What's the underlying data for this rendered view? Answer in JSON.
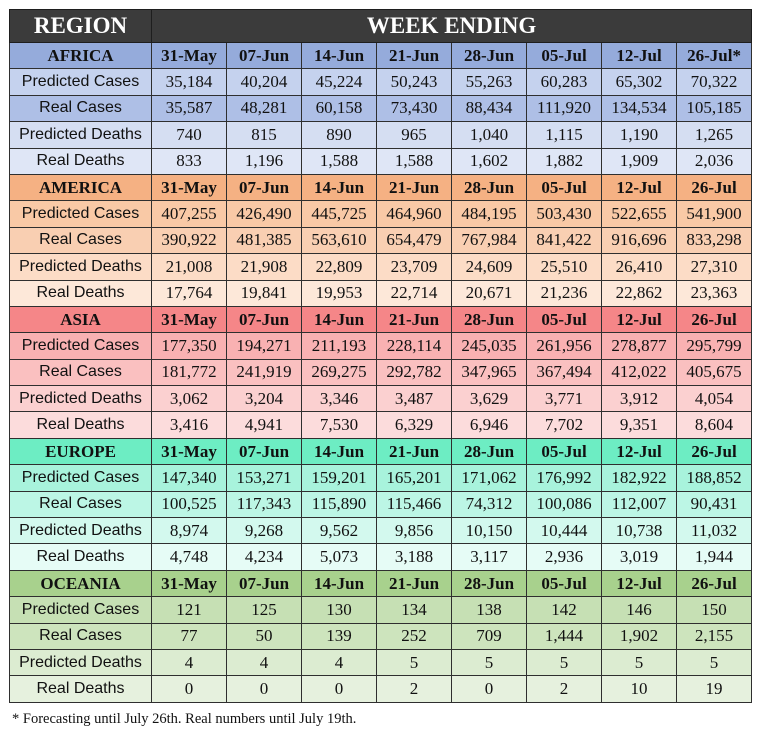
{
  "header": {
    "region": "REGION",
    "week_ending": "WEEK ENDING"
  },
  "footnote": "* Forecasting until July 26th. Real numbers until July 19th.",
  "colors": {
    "AFRICA": {
      "hdr": "#95abdb",
      "rows": [
        "#c5d2ee",
        "#aebfe6",
        "#d5def2",
        "#dfe6f6"
      ]
    },
    "AMERICA": {
      "hdr": "#f5b183",
      "rows": [
        "#f9c9a6",
        "#f9cfb2",
        "#fcdcc6",
        "#fde8d9"
      ]
    },
    "ASIA": {
      "hdr": "#f58688",
      "rows": [
        "#f9b1b2",
        "#fac0c0",
        "#fbd0d0",
        "#fcdcdc"
      ]
    },
    "EUROPE": {
      "hdr": "#6dedc3",
      "rows": [
        "#a8f3dc",
        "#bcf6e5",
        "#d3f9ee",
        "#e6fcf6"
      ]
    },
    "OCEANIA": {
      "hdr": "#a8d18d",
      "rows": [
        "#c6e0b4",
        "#cde4bd",
        "#dcecd1",
        "#e6f1de"
      ]
    }
  },
  "chart_data": {
    "type": "table",
    "title": "",
    "columns": [
      "REGION",
      "WEEK ENDING"
    ],
    "regions": [
      {
        "name": "AFRICA",
        "weeks": [
          "31-May",
          "07-Jun",
          "14-Jun",
          "21-Jun",
          "28-Jun",
          "05-Jul",
          "12-Jul",
          "26-Jul*"
        ],
        "rows": [
          {
            "metric": "Predicted Cases",
            "values": [
              "35,184",
              "40,204",
              "45,224",
              "50,243",
              "55,263",
              "60,283",
              "65,302",
              "70,322"
            ]
          },
          {
            "metric": "Real Cases",
            "values": [
              "35,587",
              "48,281",
              "60,158",
              "73,430",
              "88,434",
              "111,920",
              "134,534",
              "105,185"
            ]
          },
          {
            "metric": "Predicted Deaths",
            "values": [
              "740",
              "815",
              "890",
              "965",
              "1,040",
              "1,115",
              "1,190",
              "1,265"
            ]
          },
          {
            "metric": "Real Deaths",
            "values": [
              "833",
              "1,196",
              "1,588",
              "1,588",
              "1,602",
              "1,882",
              "1,909",
              "2,036"
            ]
          }
        ]
      },
      {
        "name": "AMERICA",
        "weeks": [
          "31-May",
          "07-Jun",
          "14-Jun",
          "21-Jun",
          "28-Jun",
          "05-Jul",
          "12-Jul",
          "26-Jul"
        ],
        "rows": [
          {
            "metric": "Predicted Cases",
            "values": [
              "407,255",
              "426,490",
              "445,725",
              "464,960",
              "484,195",
              "503,430",
              "522,655",
              "541,900"
            ]
          },
          {
            "metric": "Real Cases",
            "values": [
              "390,922",
              "481,385",
              "563,610",
              "654,479",
              "767,984",
              "841,422",
              "916,696",
              "833,298"
            ]
          },
          {
            "metric": "Predicted Deaths",
            "values": [
              "21,008",
              "21,908",
              "22,809",
              "23,709",
              "24,609",
              "25,510",
              "26,410",
              "27,310"
            ]
          },
          {
            "metric": "Real Deaths",
            "values": [
              "17,764",
              "19,841",
              "19,953",
              "22,714",
              "20,671",
              "21,236",
              "22,862",
              "23,363"
            ]
          }
        ]
      },
      {
        "name": "ASIA",
        "weeks": [
          "31-May",
          "07-Jun",
          "14-Jun",
          "21-Jun",
          "28-Jun",
          "05-Jul",
          "12-Jul",
          "26-Jul"
        ],
        "rows": [
          {
            "metric": "Predicted Cases",
            "values": [
              "177,350",
              "194,271",
              "211,193",
              "228,114",
              "245,035",
              "261,956",
              "278,877",
              "295,799"
            ]
          },
          {
            "metric": "Real Cases",
            "values": [
              "181,772",
              "241,919",
              "269,275",
              "292,782",
              "347,965",
              "367,494",
              "412,022",
              "405,675"
            ]
          },
          {
            "metric": "Predicted Deaths",
            "values": [
              "3,062",
              "3,204",
              "3,346",
              "3,487",
              "3,629",
              "3,771",
              "3,912",
              "4,054"
            ]
          },
          {
            "metric": "Real Deaths",
            "values": [
              "3,416",
              "4,941",
              "7,530",
              "6,329",
              "6,946",
              "7,702",
              "9,351",
              "8,604"
            ]
          }
        ]
      },
      {
        "name": "EUROPE",
        "weeks": [
          "31-May",
          "07-Jun",
          "14-Jun",
          "21-Jun",
          "28-Jun",
          "05-Jul",
          "12-Jul",
          "26-Jul"
        ],
        "rows": [
          {
            "metric": "Predicted Cases",
            "values": [
              "147,340",
              "153,271",
              "159,201",
              "165,201",
              "171,062",
              "176,992",
              "182,922",
              "188,852"
            ]
          },
          {
            "metric": "Real Cases",
            "values": [
              "100,525",
              "117,343",
              "115,890",
              "115,466",
              "74,312",
              "100,086",
              "112,007",
              "90,431"
            ]
          },
          {
            "metric": "Predicted Deaths",
            "values": [
              "8,974",
              "9,268",
              "9,562",
              "9,856",
              "10,150",
              "10,444",
              "10,738",
              "11,032"
            ]
          },
          {
            "metric": "Real Deaths",
            "values": [
              "4,748",
              "4,234",
              "5,073",
              "3,188",
              "3,117",
              "2,936",
              "3,019",
              "1,944"
            ]
          }
        ]
      },
      {
        "name": "OCEANIA",
        "weeks": [
          "31-May",
          "07-Jun",
          "14-Jun",
          "21-Jun",
          "28-Jun",
          "05-Jul",
          "12-Jul",
          "26-Jul"
        ],
        "rows": [
          {
            "metric": "Predicted Cases",
            "values": [
              "121",
              "125",
              "130",
              "134",
              "138",
              "142",
              "146",
              "150"
            ]
          },
          {
            "metric": "Real Cases",
            "values": [
              "77",
              "50",
              "139",
              "252",
              "709",
              "1,444",
              "1,902",
              "2,155"
            ]
          },
          {
            "metric": "Predicted Deaths",
            "values": [
              "4",
              "4",
              "4",
              "5",
              "5",
              "5",
              "5",
              "5"
            ]
          },
          {
            "metric": "Real Deaths",
            "values": [
              "0",
              "0",
              "0",
              "2",
              "0",
              "2",
              "10",
              "19"
            ]
          }
        ]
      }
    ]
  }
}
